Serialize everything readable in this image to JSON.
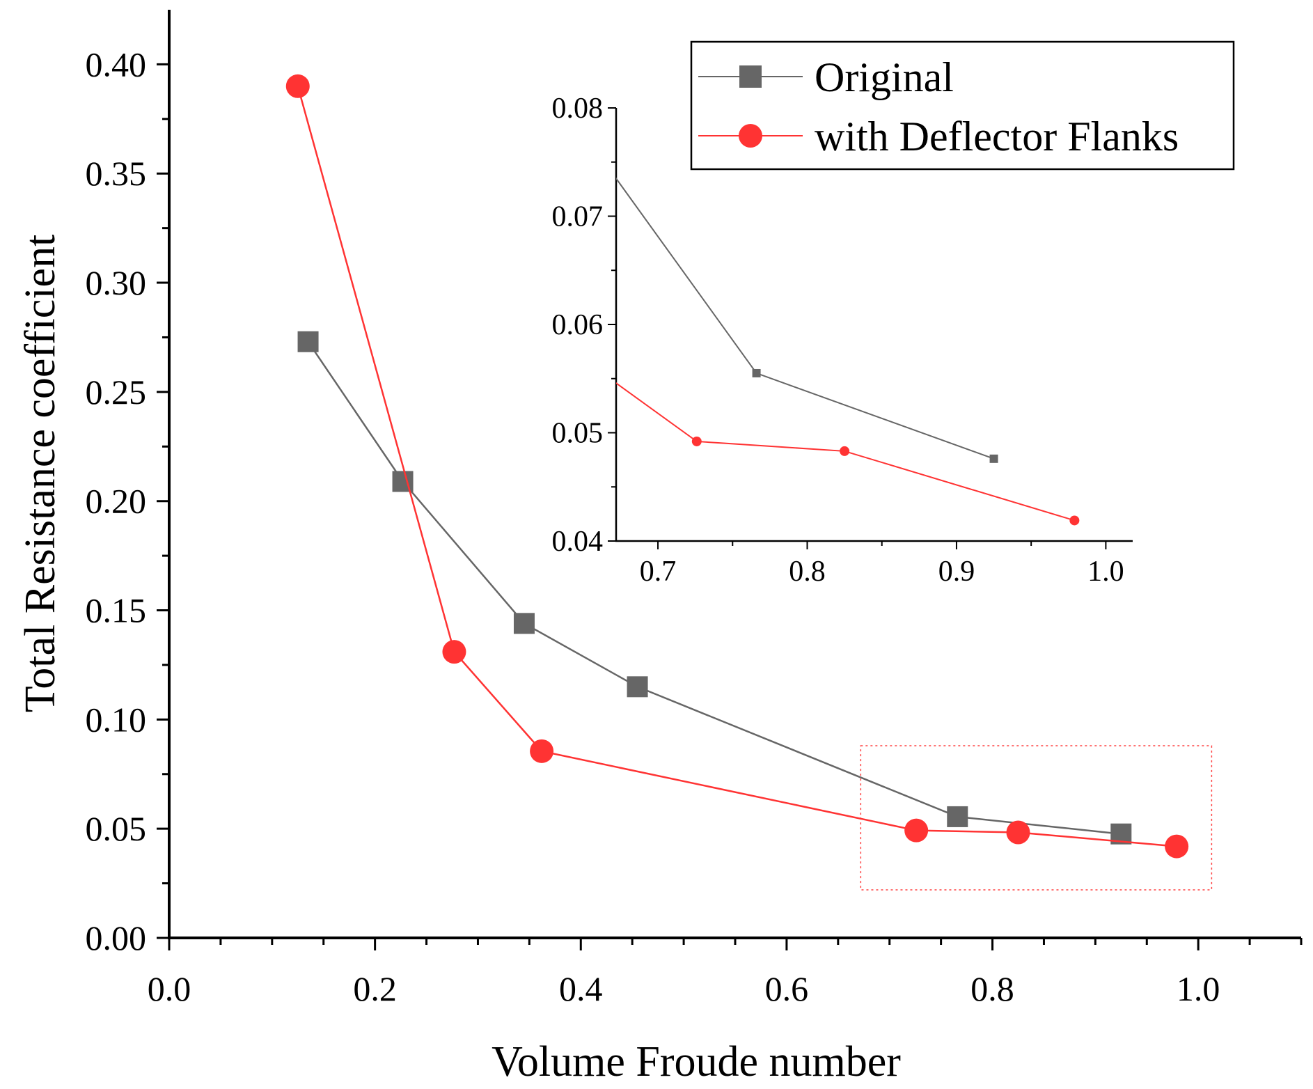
{
  "chart_data": {
    "type": "line",
    "title": "",
    "xlabel": "Volume Froude number",
    "ylabel": "Total Resistance coefficient",
    "xlim": [
      0.0,
      1.1
    ],
    "ylim": [
      0.0,
      0.425
    ],
    "x_ticks": [
      0.0,
      0.2,
      0.4,
      0.6,
      0.8,
      1.0
    ],
    "x_tick_labels": [
      "0.0",
      "0.2",
      "0.4",
      "0.6",
      "0.8",
      "1.0"
    ],
    "y_ticks": [
      0.0,
      0.05,
      0.1,
      0.15,
      0.2,
      0.25,
      0.3,
      0.35,
      0.4
    ],
    "y_tick_labels": [
      "0.00",
      "0.05",
      "0.10",
      "0.15",
      "0.20",
      "0.25",
      "0.30",
      "0.35",
      "0.40"
    ],
    "grid": false,
    "legend_position": "top-right",
    "series": [
      {
        "name": "Original",
        "color": "#666666",
        "marker": "square",
        "x": [
          0.135,
          0.227,
          0.345,
          0.455,
          0.766,
          0.925
        ],
        "y": [
          0.273,
          0.209,
          0.144,
          0.115,
          0.0555,
          0.0476
        ]
      },
      {
        "name": "with Deflector Flanks",
        "color": "#ff3333",
        "marker": "circle",
        "x": [
          0.125,
          0.277,
          0.362,
          0.726,
          0.825,
          0.979
        ],
        "y": [
          0.39,
          0.131,
          0.0855,
          0.0492,
          0.0483,
          0.0419
        ]
      }
    ],
    "highlight_region": {
      "x": [
        0.672,
        1.013
      ],
      "y": [
        0.022,
        0.088
      ]
    },
    "inset": {
      "xlim": [
        0.672,
        1.018
      ],
      "ylim": [
        0.04,
        0.08
      ],
      "x_ticks": [
        0.7,
        0.8,
        0.9,
        1.0
      ],
      "x_tick_labels": [
        "0.7",
        "0.8",
        "0.9",
        "1.0"
      ],
      "y_ticks": [
        0.04,
        0.05,
        0.06,
        0.07,
        0.08
      ],
      "y_tick_labels": [
        "0.04",
        "0.05",
        "0.06",
        "0.07",
        "0.08"
      ]
    }
  }
}
